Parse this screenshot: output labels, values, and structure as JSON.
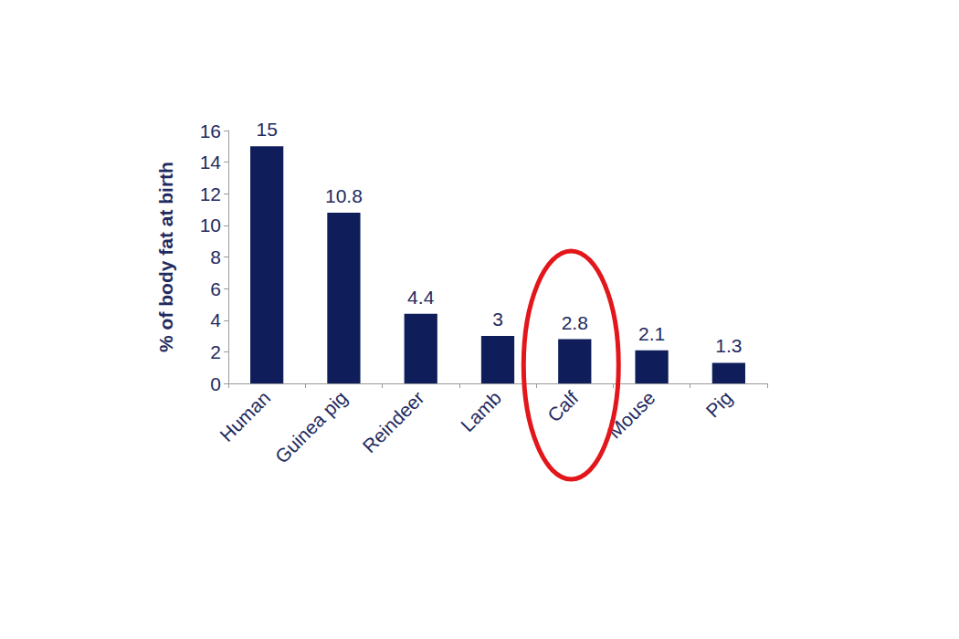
{
  "chart_data": {
    "type": "bar",
    "ylabel": "% of body fat at birth",
    "categories": [
      "Human",
      "Guinea pig",
      "Reindeer",
      "Lamb",
      "Calf",
      "Mouse",
      "Pig"
    ],
    "values": [
      15,
      10.8,
      4.4,
      3,
      2.8,
      2.1,
      1.3
    ],
    "color": "#0f1e5a",
    "ylim": [
      0,
      16
    ],
    "yticks": [
      0,
      2,
      4,
      6,
      8,
      10,
      12,
      14,
      16
    ],
    "grid": false,
    "data_labels": true
  }
}
